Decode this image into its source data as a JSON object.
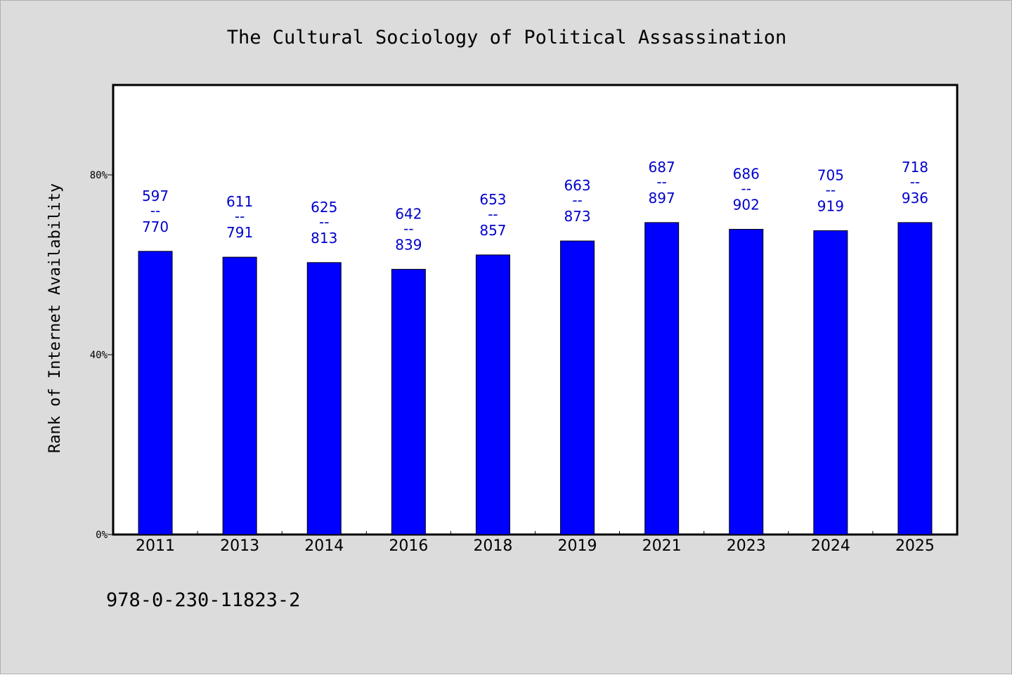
{
  "colors": {
    "background": "#dcdcdc",
    "plot_background": "#ffffff",
    "bar": "#0000ff",
    "bar_label": "#0000cc",
    "axis": "#000000"
  },
  "footnote": "978-0-230-11823-2",
  "chart_data": {
    "type": "bar",
    "title": "The Cultural Sociology of Political Assassination",
    "xlabel": "",
    "ylabel": "Rank of Internet Availability",
    "ylim": [
      0,
      1
    ],
    "yticks": [
      0,
      0.4,
      0.8
    ],
    "ytick_labels": [
      "0%",
      "40%",
      "80%"
    ],
    "grid": false,
    "legend": "none",
    "categories": [
      "2011",
      "2013",
      "2014",
      "2016",
      "2018",
      "2019",
      "2021",
      "2023",
      "2024",
      "2025"
    ],
    "values": [
      0.63,
      0.617,
      0.605,
      0.59,
      0.622,
      0.653,
      0.694,
      0.679,
      0.676,
      0.694
    ],
    "bar_labels": [
      {
        "top": "597",
        "sep": "--",
        "bottom": "770"
      },
      {
        "top": "611",
        "sep": "--",
        "bottom": "791"
      },
      {
        "top": "625",
        "sep": "--",
        "bottom": "813"
      },
      {
        "top": "642",
        "sep": "--",
        "bottom": "839"
      },
      {
        "top": "653",
        "sep": "--",
        "bottom": "857"
      },
      {
        "top": "663",
        "sep": "--",
        "bottom": "873"
      },
      {
        "top": "687",
        "sep": "--",
        "bottom": "897"
      },
      {
        "top": "686",
        "sep": "--",
        "bottom": "902"
      },
      {
        "top": "705",
        "sep": "--",
        "bottom": "919"
      },
      {
        "top": "718",
        "sep": "--",
        "bottom": "936"
      }
    ]
  }
}
